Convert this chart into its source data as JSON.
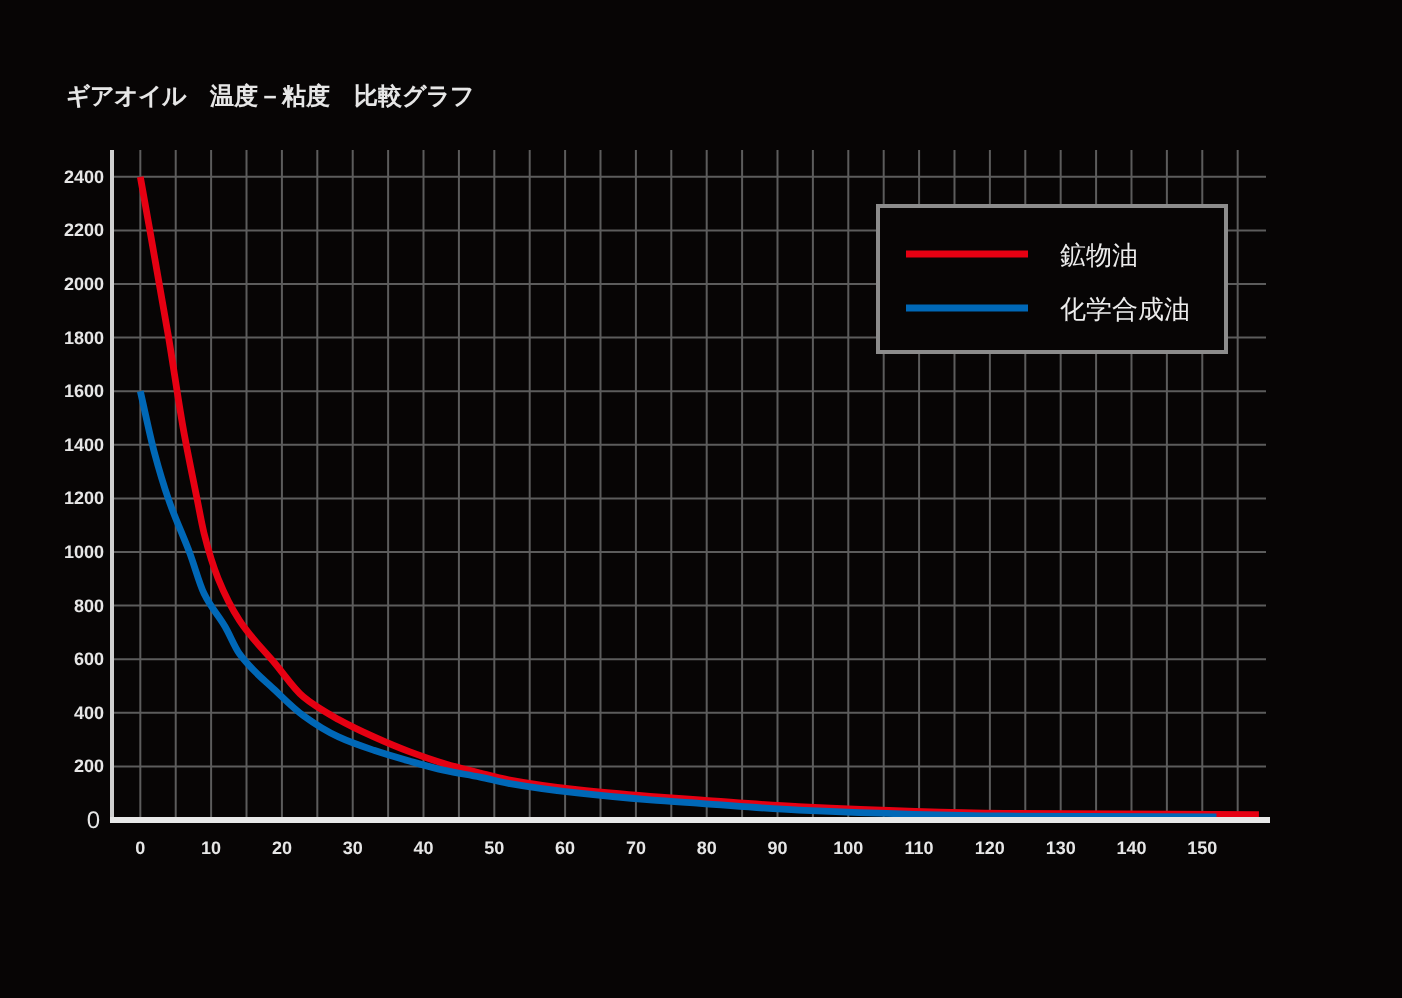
{
  "chart_data": {
    "type": "line",
    "title": "ギアオイル　温度－粘度　比較グラフ",
    "xlim": [
      -4,
      159
    ],
    "xticks": [
      0,
      {
        "value": 5,
        "label": null
      },
      10,
      {
        "value": 15,
        "label": null
      },
      20,
      {
        "value": 25,
        "label": null
      },
      30,
      {
        "value": 35,
        "label": null
      },
      40,
      {
        "value": 45,
        "label": null
      },
      50,
      {
        "value": 55,
        "label": null
      },
      60,
      {
        "value": 65,
        "label": null
      },
      70,
      {
        "value": 75,
        "label": null
      },
      80,
      {
        "value": 85,
        "label": null
      },
      90,
      {
        "value": 95,
        "label": null
      },
      100,
      {
        "value": 105,
        "label": null
      },
      110,
      {
        "value": 115,
        "label": null
      },
      120,
      {
        "value": 125,
        "label": null
      },
      130,
      {
        "value": 135,
        "label": null
      },
      140,
      {
        "value": 145,
        "label": null
      },
      150,
      {
        "value": 155,
        "label": null
      }
    ],
    "ylim": [
      0,
      2500
    ],
    "yticks": [
      0,
      200,
      400,
      600,
      800,
      1000,
      1200,
      1400,
      1600,
      1800,
      2000,
      2200,
      2400
    ],
    "grid": true,
    "legend": "top right",
    "series": [
      {
        "name": "鉱物油",
        "color": "#e60012",
        "x": [
          0,
          4,
          6,
          8,
          9,
          11,
          14,
          19,
          23,
          28,
          33,
          38,
          43,
          48,
          52,
          62,
          72,
          79,
          93,
          122,
          158
        ],
        "values": [
          2400,
          1800,
          1470,
          1200,
          1070,
          900,
          745,
          585,
          460,
          375,
          310,
          255,
          210,
          175,
          150,
          112,
          88,
          75,
          50,
          25,
          20
        ]
      },
      {
        "name": "化学合成油",
        "color": "#0068b7",
        "x": [
          0,
          2,
          4,
          7,
          9,
          12,
          14,
          19,
          23,
          28,
          33,
          38,
          43,
          48,
          52,
          62,
          72,
          79,
          93,
          122,
          152
        ],
        "values": [
          1600,
          1370,
          1195,
          995,
          845,
          720,
          620,
          485,
          390,
          310,
          260,
          220,
          185,
          160,
          137,
          100,
          75,
          62,
          37,
          15,
          12
        ]
      }
    ]
  }
}
